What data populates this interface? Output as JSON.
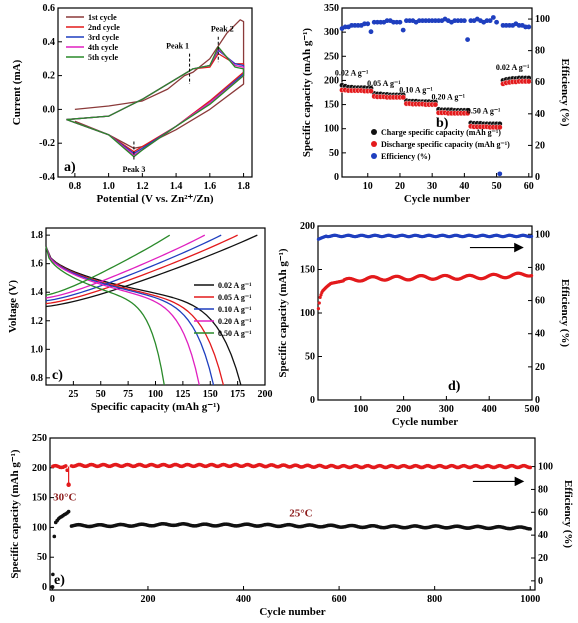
{
  "chart_data": [
    {
      "id": "a",
      "type": "line",
      "panel_label": "a)",
      "xlabel": "Potential (V vs. Zn²⁺/Zn)",
      "ylabel": "Current (mA)",
      "xlim": [
        0.7,
        1.85
      ],
      "ylim": [
        -0.4,
        0.6
      ],
      "xticks": [
        0.8,
        1.0,
        1.2,
        1.4,
        1.6,
        1.8
      ],
      "yticks": [
        -0.4,
        -0.2,
        0.0,
        0.2,
        0.4,
        0.6
      ],
      "legend_position": "top-left",
      "annotations": [
        "Peak 1",
        "Peak 2",
        "Peak 3"
      ],
      "series": [
        {
          "name": "1st cycle",
          "color": "#8b3a3a",
          "anodic_x": [
            0.8,
            1.0,
            1.2,
            1.35,
            1.45,
            1.5,
            1.6,
            1.7,
            1.78,
            1.8
          ],
          "anodic_y": [
            0.0,
            0.02,
            0.05,
            0.12,
            0.2,
            0.22,
            0.3,
            0.45,
            0.53,
            0.52
          ],
          "cathodic_x": [
            1.8,
            1.6,
            1.4,
            1.2,
            1.15,
            1.0,
            0.8
          ],
          "cathodic_y": [
            0.15,
            0.0,
            -0.12,
            -0.22,
            -0.23,
            -0.15,
            -0.07
          ]
        },
        {
          "name": "2nd cycle",
          "color": "#e31a1c",
          "anodic_x": [
            0.75,
            1.0,
            1.2,
            1.4,
            1.5,
            1.6,
            1.65,
            1.75,
            1.8
          ],
          "anodic_y": [
            -0.06,
            -0.04,
            0.06,
            0.18,
            0.24,
            0.25,
            0.33,
            0.27,
            0.27
          ],
          "cathodic_x": [
            1.8,
            1.6,
            1.4,
            1.2,
            1.15,
            1.0,
            0.75
          ],
          "cathodic_y": [
            0.22,
            0.05,
            -0.1,
            -0.22,
            -0.25,
            -0.15,
            -0.06
          ]
        },
        {
          "name": "3rd cycle",
          "color": "#1f3fbf",
          "anodic_x": [
            0.75,
            1.0,
            1.2,
            1.4,
            1.5,
            1.6,
            1.65,
            1.75,
            1.8
          ],
          "anodic_y": [
            -0.06,
            -0.04,
            0.06,
            0.18,
            0.24,
            0.26,
            0.35,
            0.27,
            0.26
          ],
          "cathodic_x": [
            1.8,
            1.6,
            1.4,
            1.2,
            1.15,
            1.0,
            0.75
          ],
          "cathodic_y": [
            0.21,
            0.04,
            -0.1,
            -0.23,
            -0.26,
            -0.15,
            -0.06
          ]
        },
        {
          "name": "4th cycle",
          "color": "#e020c0",
          "anodic_x": [
            0.75,
            1.0,
            1.2,
            1.4,
            1.5,
            1.6,
            1.65,
            1.75,
            1.8
          ],
          "anodic_y": [
            -0.06,
            -0.04,
            0.06,
            0.18,
            0.24,
            0.26,
            0.36,
            0.26,
            0.25
          ],
          "cathodic_x": [
            1.8,
            1.6,
            1.4,
            1.2,
            1.15,
            1.0,
            0.75
          ],
          "cathodic_y": [
            0.2,
            0.04,
            -0.1,
            -0.24,
            -0.27,
            -0.15,
            -0.06
          ]
        },
        {
          "name": "5th cycle",
          "color": "#2a8a2a",
          "anodic_x": [
            0.75,
            1.0,
            1.2,
            1.4,
            1.5,
            1.6,
            1.65,
            1.75,
            1.8
          ],
          "anodic_y": [
            -0.06,
            -0.04,
            0.06,
            0.18,
            0.24,
            0.26,
            0.37,
            0.25,
            0.24
          ],
          "cathodic_x": [
            1.8,
            1.6,
            1.4,
            1.2,
            1.15,
            1.0,
            0.75
          ],
          "cathodic_y": [
            0.2,
            0.03,
            -0.1,
            -0.24,
            -0.28,
            -0.15,
            -0.06
          ]
        }
      ]
    },
    {
      "id": "b",
      "type": "scatter",
      "panel_label": "b)",
      "xlabel": "Cycle number",
      "ylabel": "Specific capacity (mAh g⁻¹)",
      "y2label": "Efficiency (%)",
      "xlim": [
        2,
        61
      ],
      "ylim": [
        0,
        350
      ],
      "y2lim": [
        0,
        107
      ],
      "xticks": [
        10,
        20,
        30,
        40,
        50,
        60
      ],
      "yticks": [
        0,
        50,
        100,
        150,
        200,
        250,
        300,
        350
      ],
      "y2ticks": [
        0,
        20,
        40,
        60,
        80,
        100
      ],
      "legend_position": "lower-right",
      "annotations": [
        "0.02 A g⁻¹",
        "0.05 A g⁻¹",
        "0.10 A g⁻¹",
        "0.20 A g⁻¹",
        "0.50 A g⁻¹",
        "0.02 A g⁻¹"
      ],
      "series": [
        {
          "name": "Charge specific capacity (mAh g⁻¹)",
          "color": "#111111",
          "axis": "left",
          "x": [
            2,
            3,
            4,
            5,
            6,
            7,
            8,
            9,
            10,
            11,
            12,
            13,
            14,
            15,
            16,
            17,
            18,
            19,
            20,
            21,
            22,
            23,
            24,
            25,
            26,
            27,
            28,
            29,
            30,
            31,
            32,
            33,
            34,
            35,
            36,
            37,
            38,
            39,
            40,
            41,
            42,
            43,
            44,
            45,
            46,
            47,
            48,
            49,
            50,
            51,
            52,
            53,
            54,
            55,
            56,
            57,
            58,
            59,
            60
          ],
          "y": [
            190,
            188,
            186,
            186,
            185,
            185,
            185,
            185,
            184,
            184,
            173,
            172,
            172,
            171,
            171,
            170,
            170,
            170,
            170,
            170,
            158,
            157,
            157,
            157,
            156,
            156,
            156,
            156,
            155,
            155,
            140,
            139,
            139,
            139,
            139,
            138,
            138,
            138,
            138,
            138,
            112,
            111,
            111,
            111,
            110,
            110,
            110,
            110,
            110,
            110,
            200,
            202,
            203,
            204,
            204,
            205,
            205,
            205,
            205
          ]
        },
        {
          "name": "Discharge specific capacity (mAh g⁻¹)",
          "color": "#e31a1c",
          "axis": "left",
          "x": [
            2,
            3,
            4,
            5,
            6,
            7,
            8,
            9,
            10,
            11,
            12,
            13,
            14,
            15,
            16,
            17,
            18,
            19,
            20,
            21,
            22,
            23,
            24,
            25,
            26,
            27,
            28,
            29,
            30,
            31,
            32,
            33,
            34,
            35,
            36,
            37,
            38,
            39,
            40,
            41,
            42,
            43,
            44,
            45,
            46,
            47,
            48,
            49,
            50,
            51,
            52,
            53,
            54,
            55,
            56,
            57,
            58,
            59,
            60
          ],
          "y": [
            180,
            180,
            179,
            179,
            179,
            179,
            179,
            178,
            178,
            178,
            167,
            166,
            166,
            166,
            165,
            165,
            165,
            165,
            165,
            165,
            152,
            152,
            151,
            151,
            151,
            151,
            150,
            150,
            150,
            150,
            133,
            133,
            133,
            132,
            132,
            132,
            132,
            132,
            132,
            132,
            105,
            104,
            104,
            104,
            104,
            104,
            103,
            103,
            103,
            103,
            193,
            195,
            196,
            197,
            197,
            198,
            198,
            198,
            198
          ]
        },
        {
          "name": "Efficiency (%)",
          "color": "#1f3fbf",
          "axis": "right",
          "x": [
            2,
            3,
            4,
            5,
            6,
            7,
            8,
            9,
            10,
            11,
            12,
            13,
            14,
            15,
            16,
            17,
            18,
            19,
            20,
            21,
            22,
            23,
            24,
            25,
            26,
            27,
            28,
            29,
            30,
            31,
            32,
            33,
            34,
            35,
            36,
            37,
            38,
            39,
            40,
            41,
            42,
            43,
            44,
            45,
            46,
            47,
            48,
            49,
            50,
            51,
            52,
            53,
            54,
            55,
            56,
            57,
            58,
            59,
            60
          ],
          "y": [
            94,
            95,
            95,
            96,
            96,
            96,
            96,
            97,
            97,
            92,
            98,
            98,
            98,
            98,
            99,
            99,
            98,
            98,
            98,
            93,
            99,
            99,
            99,
            98,
            99,
            99,
            99,
            99,
            99,
            99,
            99,
            99,
            100,
            99,
            98,
            99,
            99,
            99,
            99,
            87,
            99,
            99,
            100,
            99,
            98,
            99,
            99,
            101,
            98,
            2,
            96,
            96,
            96,
            96,
            97,
            96,
            96,
            95,
            95
          ]
        }
      ]
    },
    {
      "id": "c",
      "type": "line",
      "panel_label": "c)",
      "xlabel": "Specific capacity (mAh g⁻¹)",
      "ylabel": "Voltage (V)",
      "xlim": [
        0,
        200
      ],
      "ylim": [
        0.75,
        1.85
      ],
      "xticks": [
        25,
        50,
        75,
        100,
        125,
        150,
        175,
        200
      ],
      "yticks": [
        0.8,
        1.0,
        1.2,
        1.4,
        1.6,
        1.8
      ],
      "legend_position": "right",
      "series": [
        {
          "name": "0.02 A g⁻¹",
          "color": "#111111",
          "charge_capacity": 193,
          "discharge_capacity": 178
        },
        {
          "name": "0.05 A g⁻¹",
          "color": "#e31a1c",
          "charge_capacity": 175,
          "discharge_capacity": 162
        },
        {
          "name": "0.10 A g⁻¹",
          "color": "#1f3fbf",
          "charge_capacity": 160,
          "discharge_capacity": 153
        },
        {
          "name": "0.20 A g⁻¹",
          "color": "#e020c0",
          "charge_capacity": 145,
          "discharge_capacity": 140
        },
        {
          "name": "0.50 A g⁻¹",
          "color": "#2a8a2a",
          "charge_capacity": 113,
          "discharge_capacity": 108
        }
      ]
    },
    {
      "id": "d",
      "type": "scatter",
      "panel_label": "d)",
      "xlabel": "Cycle number",
      "ylabel": "Specific capacity (mAh g⁻¹)",
      "y2label": "Efficiency (%)",
      "xlim": [
        0,
        500
      ],
      "ylim": [
        0,
        200
      ],
      "y2lim": [
        0,
        105
      ],
      "xticks": [
        100,
        200,
        300,
        400,
        500
      ],
      "yticks": [
        0,
        50,
        100,
        150,
        200
      ],
      "y2ticks": [
        0,
        20,
        40,
        60,
        80,
        100
      ],
      "series": [
        {
          "name": "capacity",
          "color": "#e31a1c",
          "axis": "left",
          "x": [
            1,
            5,
            10,
            20,
            30,
            40,
            50,
            60,
            80,
            100,
            150,
            200,
            250,
            300,
            350,
            400,
            450,
            480,
            500
          ],
          "y": [
            105,
            118,
            125,
            130,
            134,
            135,
            136,
            137,
            138,
            139,
            140,
            140,
            141,
            141,
            141,
            142,
            143,
            144,
            145
          ]
        },
        {
          "name": "efficiency",
          "color": "#1f3fbf",
          "axis": "right",
          "x": [
            1,
            10,
            20,
            50,
            100,
            200,
            300,
            400,
            500
          ],
          "y": [
            97,
            98,
            99,
            99,
            99,
            99,
            99,
            99,
            99
          ]
        }
      ]
    },
    {
      "id": "e",
      "type": "scatter",
      "panel_label": "e)",
      "xlabel": "Cycle number",
      "ylabel": "Specific capacity (mAh g⁻¹)",
      "y2label": "Efficiency (%)",
      "xlim": [
        -5,
        1010
      ],
      "ylim": [
        -5,
        250
      ],
      "y2lim": [
        -8,
        125
      ],
      "xticks": [
        0,
        200,
        400,
        600,
        800,
        1000
      ],
      "yticks": [
        0,
        50,
        100,
        150,
        200,
        250
      ],
      "y2ticks": [
        0,
        20,
        40,
        60,
        80,
        100
      ],
      "annotations": [
        "30°C",
        "25°C"
      ],
      "series": [
        {
          "name": "capacity",
          "color": "#111111",
          "axis": "left",
          "x": [
            0,
            5,
            10,
            15,
            20,
            25,
            30,
            34,
            40,
            60,
            100,
            200,
            250,
            300,
            400,
            500,
            600,
            700,
            800,
            900,
            1000
          ],
          "y": [
            0,
            105,
            110,
            115,
            118,
            122,
            125,
            128,
            103,
            103,
            103,
            104,
            105,
            104,
            104,
            103,
            102,
            101,
            101,
            100,
            99
          ]
        },
        {
          "name": "efficiency",
          "color": "#e31a1c",
          "axis": "right",
          "x": [
            0,
            10,
            20,
            30,
            34,
            36,
            40,
            100,
            200,
            400,
            600,
            800,
            1000
          ],
          "y": [
            100,
            100,
            100,
            100,
            84,
            100,
            101,
            101,
            101,
            101,
            100,
            100,
            100
          ]
        }
      ]
    }
  ]
}
